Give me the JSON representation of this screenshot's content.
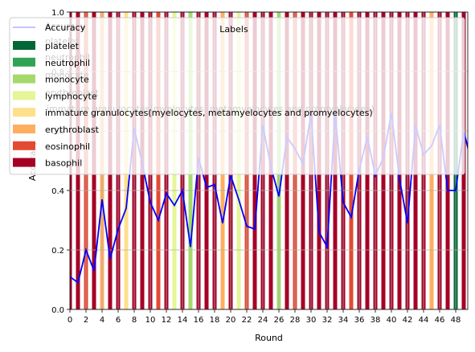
{
  "chart_data": {
    "type": "bar",
    "xlabel": "Round",
    "ylabel": "Accuracy",
    "xlim": [
      0,
      49.5
    ],
    "ylim": [
      0,
      1.0
    ],
    "x_ticks": [
      0,
      2,
      4,
      6,
      8,
      10,
      12,
      14,
      16,
      18,
      20,
      22,
      24,
      26,
      28,
      30,
      32,
      34,
      36,
      38,
      40,
      42,
      44,
      46,
      48
    ],
    "y_ticks": [
      0.0,
      0.2,
      0.4,
      0.6,
      0.8,
      1.0
    ],
    "grid": true,
    "legend": {
      "title": "Labels",
      "placement": "top",
      "line_entry": "Accuracy",
      "entries": [
        {
          "name": "platelet",
          "color": "#006837"
        },
        {
          "name": "neutrophil",
          "color": "#31a354"
        },
        {
          "name": "monocyte",
          "color": "#a6d96a"
        },
        {
          "name": "lymphocyte",
          "color": "#e6f598"
        },
        {
          "name": "immature granulocytes(myelocytes, metamyelocytes and promyelocytes)",
          "color": "#fee08b"
        },
        {
          "name": "erythroblast",
          "color": "#fdae61"
        },
        {
          "name": "eosinophil",
          "color": "#e34a33"
        },
        {
          "name": "basophil",
          "color": "#a50026"
        }
      ],
      "ghost_labels": [
        "Accuracy",
        "platelet",
        "neutrophil",
        "monocyte",
        "erythroblast",
        "immature granulocytes(myelocytes, metamyelocytes and promyelocytes)"
      ]
    },
    "bar_class_per_round": [
      "basophil",
      "basophil",
      "eosinophil",
      "basophil",
      "erythroblast",
      "basophil",
      "basophil",
      "immature granulocytes(myelocytes, metamyelocytes and promyelocytes)",
      "basophil",
      "basophil",
      "basophil",
      "eosinophil",
      "basophil",
      "lymphocyte",
      "basophil",
      "monocyte",
      "basophil",
      "basophil",
      "basophil",
      "erythroblast",
      "basophil",
      "lymphocyte",
      "eosinophil",
      "basophil",
      "basophil",
      "basophil",
      "monocyte",
      "basophil",
      "eosinophil",
      "basophil",
      "basophil",
      "basophil",
      "basophil",
      "basophil",
      "basophil",
      "eosinophil",
      "basophil",
      "basophil",
      "basophil",
      "basophil",
      "basophil",
      "basophil",
      "basophil",
      "basophil",
      "basophil",
      "erythroblast",
      "basophil",
      "basophil",
      "platelet",
      "basophil"
    ],
    "series": [
      {
        "name": "Accuracy",
        "color": "#0000ff",
        "x": [
          0,
          1,
          2,
          3,
          4,
          5,
          6,
          7,
          8,
          9,
          10,
          11,
          12,
          13,
          14,
          15,
          16,
          17,
          18,
          19,
          20,
          21,
          22,
          23,
          24,
          25,
          26,
          27,
          28,
          29,
          30,
          31,
          32,
          33,
          34,
          35,
          36,
          37,
          38,
          39,
          40,
          41,
          42,
          43,
          44,
          45,
          46,
          47,
          48,
          49,
          50
        ],
        "values": [
          0.11,
          0.09,
          0.2,
          0.13,
          0.37,
          0.17,
          0.27,
          0.34,
          0.61,
          0.49,
          0.36,
          0.3,
          0.39,
          0.35,
          0.4,
          0.21,
          0.51,
          0.41,
          0.42,
          0.29,
          0.45,
          0.37,
          0.28,
          0.27,
          0.62,
          0.48,
          0.38,
          0.58,
          0.54,
          0.49,
          0.66,
          0.26,
          0.21,
          0.66,
          0.36,
          0.31,
          0.47,
          0.58,
          0.45,
          0.51,
          0.66,
          0.44,
          0.29,
          0.62,
          0.52,
          0.55,
          0.62,
          0.4,
          0.4,
          0.6,
          0.49
        ]
      }
    ]
  }
}
